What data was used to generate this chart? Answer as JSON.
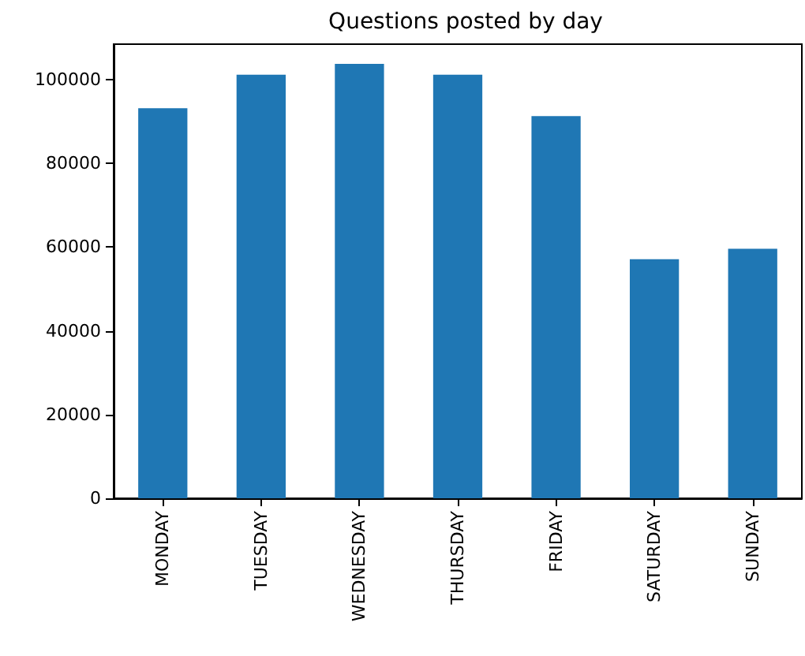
{
  "chart_data": {
    "type": "bar",
    "title": "Questions posted by day",
    "categories": [
      "MONDAY",
      "TUESDAY",
      "WEDNESDAY",
      "THURSDAY",
      "FRIDAY",
      "SATURDAY",
      "SUNDAY"
    ],
    "values": [
      93200,
      101200,
      103800,
      101200,
      91300,
      57100,
      59600
    ],
    "color": "#1f77b4",
    "ylim": [
      0,
      108500
    ],
    "yticks": [
      0,
      20000,
      40000,
      60000,
      80000,
      100000
    ]
  }
}
